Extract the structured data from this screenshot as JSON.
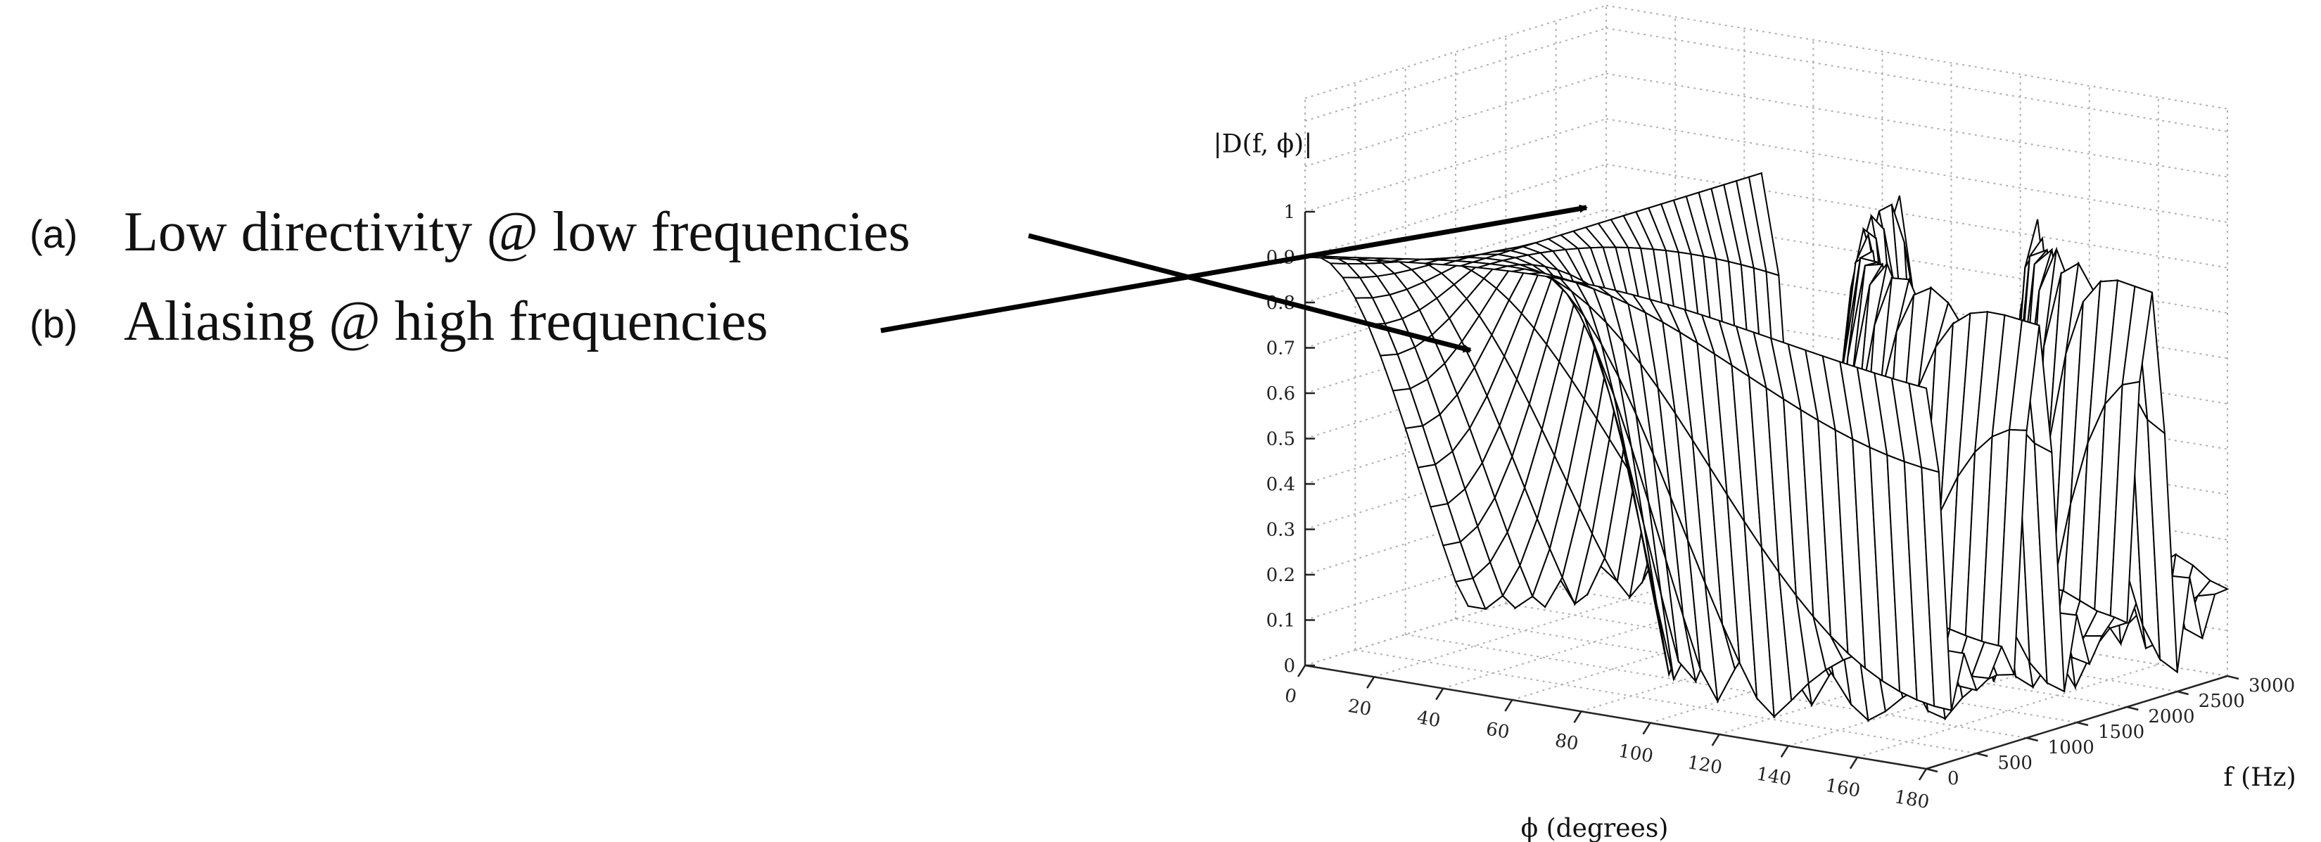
{
  "annotations": [
    {
      "tag": "(a)",
      "text": "Low directivity @ low frequencies"
    },
    {
      "tag": "(b)",
      "text": "Aliasing @ high frequencies"
    }
  ],
  "chart_data": {
    "type": "surface",
    "zlabel": "|D(f, ϕ)|",
    "xlabel": "ϕ (degrees)",
    "ylabel": "f (Hz)",
    "xlim": [
      0,
      180
    ],
    "ylim": [
      0,
      3000
    ],
    "zlim": [
      0,
      1
    ],
    "x_ticks": [
      "0",
      "20",
      "40",
      "60",
      "80",
      "100",
      "120",
      "140",
      "160",
      "180"
    ],
    "y_ticks": [
      "0",
      "500",
      "1000",
      "1500",
      "2000",
      "2500",
      "3000"
    ],
    "z_ticks": [
      "0",
      "0.1",
      "0.2",
      "0.3",
      "0.4",
      "0.5",
      "0.6",
      "0.7",
      "0.8",
      "0.9",
      "1"
    ],
    "grid": true,
    "surface_colors": {
      "edge": "#000000",
      "face": "#ffffff"
    }
  }
}
